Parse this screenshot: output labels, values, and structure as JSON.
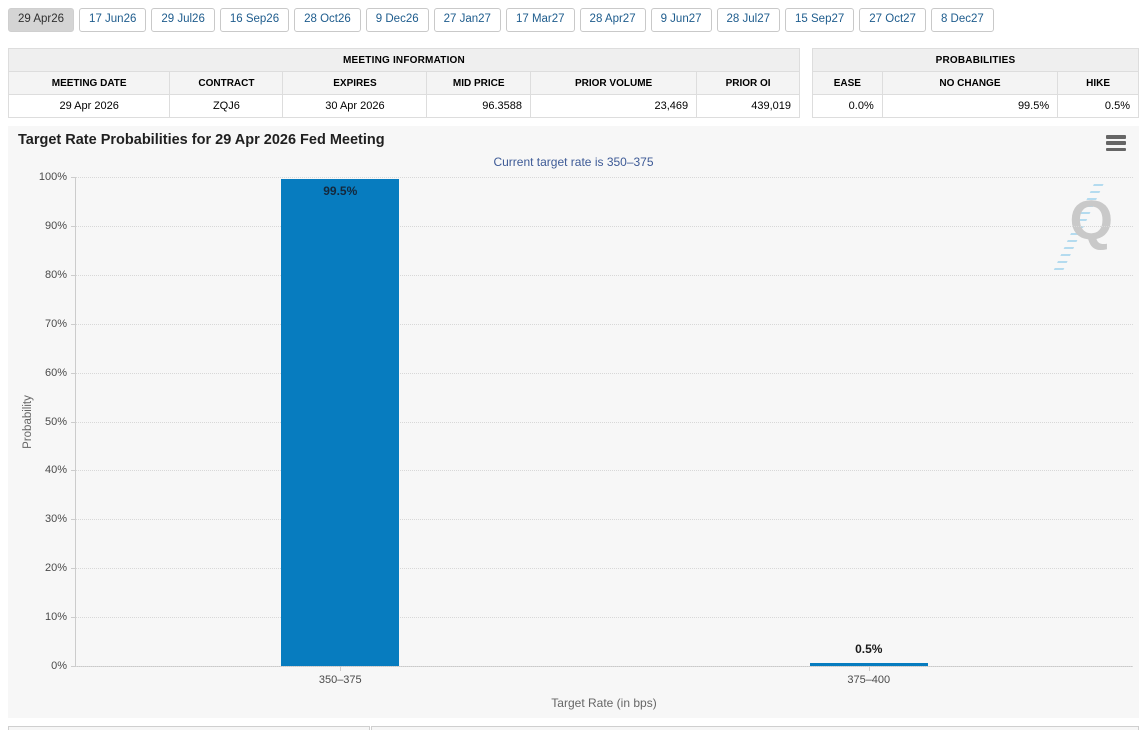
{
  "colors": {
    "bar_blue": "#077cbf",
    "subtitle_navy": "#3d5a96",
    "tab_link_blue": "#1e5c8d",
    "chart_bg": "#f7f7f7",
    "grid_gray": "#d8d8d8"
  },
  "tabs": {
    "items": [
      {
        "label": "29 Apr26",
        "selected": true
      },
      {
        "label": "17 Jun26",
        "selected": false
      },
      {
        "label": "29 Jul26",
        "selected": false
      },
      {
        "label": "16 Sep26",
        "selected": false
      },
      {
        "label": "28 Oct26",
        "selected": false
      },
      {
        "label": "9 Dec26",
        "selected": false
      },
      {
        "label": "27 Jan27",
        "selected": false
      },
      {
        "label": "17 Mar27",
        "selected": false
      },
      {
        "label": "28 Apr27",
        "selected": false
      },
      {
        "label": "9 Jun27",
        "selected": false
      },
      {
        "label": "28 Jul27",
        "selected": false
      },
      {
        "label": "15 Sep27",
        "selected": false
      },
      {
        "label": "27 Oct27",
        "selected": false
      },
      {
        "label": "8 Dec27",
        "selected": false
      }
    ]
  },
  "meeting_info": {
    "title": "MEETING INFORMATION",
    "columns": [
      "MEETING DATE",
      "CONTRACT",
      "EXPIRES",
      "MID PRICE",
      "PRIOR VOLUME",
      "PRIOR OI"
    ],
    "row": [
      "29 Apr 2026",
      "ZQJ6",
      "30 Apr 2026",
      "96.3588",
      "23,469",
      "439,019"
    ]
  },
  "probabilities": {
    "title": "PROBABILITIES",
    "columns": [
      "EASE",
      "NO CHANGE",
      "HIKE"
    ],
    "row": [
      "0.0%",
      "99.5%",
      "0.5%"
    ]
  },
  "chart": {
    "menu_icon": "hamburger-icon",
    "watermark_letter": "Q"
  },
  "chart_data": {
    "type": "bar",
    "title": "Target Rate Probabilities for 29 Apr 2026 Fed Meeting",
    "subtitle": "Current target rate is 350–375",
    "categories": [
      "350–375",
      "375–400"
    ],
    "values": [
      99.5,
      0.5
    ],
    "value_labels": [
      "99.5%",
      "0.5%"
    ],
    "xlabel": "Target Rate (in bps)",
    "ylabel": "Probability",
    "ylim": [
      0,
      100
    ],
    "ytick_step": 10,
    "ytick_suffix": "%",
    "grid": true,
    "legend": false,
    "bar_color": "#077cbf"
  }
}
